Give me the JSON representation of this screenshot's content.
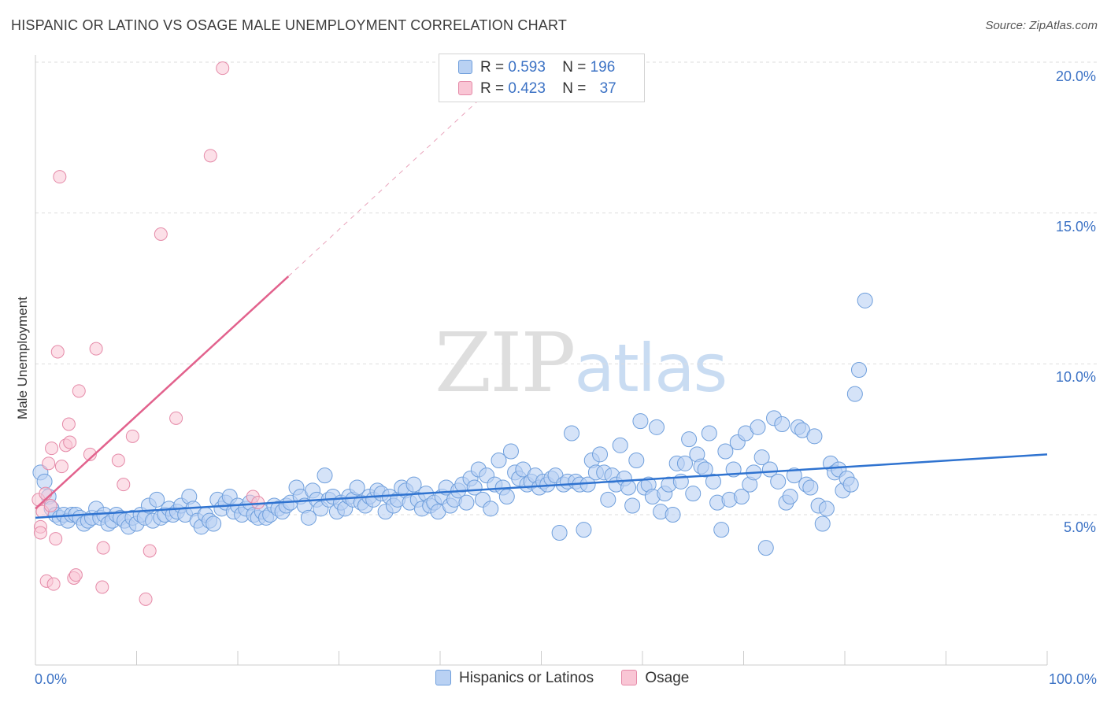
{
  "title": "HISPANIC OR LATINO VS OSAGE MALE UNEMPLOYMENT CORRELATION CHART",
  "source": "Source: ZipAtlas.com",
  "watermark": {
    "zip": "ZIP",
    "atlas": "atlas"
  },
  "legend_top": [
    {
      "r_label": "R =",
      "r_value": "0.593",
      "n_label": "N =",
      "n_value": "196"
    },
    {
      "r_label": "R =",
      "r_value": "0.423",
      "n_label": "N =",
      "n_value": "37"
    }
  ],
  "colors": {
    "blue_fill": "#b9d1f3",
    "blue_stroke": "#6f9fdc",
    "blue_line": "#2f73d0",
    "pink_fill": "#f9c6d5",
    "pink_stroke": "#e58aa8",
    "pink_line": "#e2628d",
    "axis_text": "#3d73c5",
    "grid": "#dddddd"
  },
  "chart_data": {
    "type": "scatter",
    "title": "HISPANIC OR LATINO VS OSAGE MALE UNEMPLOYMENT CORRELATION CHART",
    "xlabel": "",
    "ylabel": "Male Unemployment",
    "xlim": [
      0,
      100
    ],
    "ylim": [
      0,
      20.5
    ],
    "x_tick_labels": [
      "0.0%",
      "100.0%"
    ],
    "y_ticks": [
      5,
      10,
      15,
      20
    ],
    "y_tick_labels": [
      "5.0%",
      "10.0%",
      "15.0%",
      "20.0%"
    ],
    "grid": true,
    "legend_position": "bottom",
    "series": [
      {
        "name": "Hispanics or Latinos",
        "trendline": {
          "x": [
            0,
            100
          ],
          "y": [
            4.9,
            7.0
          ],
          "style": "solid"
        },
        "points": [
          [
            0.5,
            6.4
          ],
          [
            0.9,
            6.1
          ],
          [
            1.3,
            5.6
          ],
          [
            1.6,
            5.2
          ],
          [
            2.0,
            5.0
          ],
          [
            2.4,
            4.9
          ],
          [
            2.8,
            5.0
          ],
          [
            3.2,
            4.8
          ],
          [
            3.6,
            5.0
          ],
          [
            4.0,
            5.0
          ],
          [
            4.4,
            4.9
          ],
          [
            4.8,
            4.7
          ],
          [
            5.2,
            4.8
          ],
          [
            5.6,
            4.9
          ],
          [
            6.0,
            5.2
          ],
          [
            6.4,
            4.9
          ],
          [
            6.8,
            5.0
          ],
          [
            7.2,
            4.7
          ],
          [
            7.6,
            4.8
          ],
          [
            8.0,
            5.0
          ],
          [
            8.4,
            4.9
          ],
          [
            8.8,
            4.8
          ],
          [
            9.2,
            4.6
          ],
          [
            9.6,
            4.9
          ],
          [
            10.0,
            4.7
          ],
          [
            10.4,
            5.0
          ],
          [
            10.8,
            4.9
          ],
          [
            11.2,
            5.3
          ],
          [
            11.6,
            4.8
          ],
          [
            12.0,
            5.5
          ],
          [
            12.4,
            4.9
          ],
          [
            12.8,
            5.0
          ],
          [
            13.2,
            5.2
          ],
          [
            13.6,
            5.0
          ],
          [
            14.0,
            5.1
          ],
          [
            14.4,
            5.3
          ],
          [
            14.8,
            5.0
          ],
          [
            15.2,
            5.6
          ],
          [
            15.6,
            5.2
          ],
          [
            16.0,
            4.8
          ],
          [
            16.4,
            4.6
          ],
          [
            16.8,
            5.0
          ],
          [
            17.2,
            4.8
          ],
          [
            17.6,
            4.7
          ],
          [
            18.0,
            5.5
          ],
          [
            18.4,
            5.2
          ],
          [
            18.8,
            5.4
          ],
          [
            19.2,
            5.6
          ],
          [
            19.6,
            5.1
          ],
          [
            20.0,
            5.3
          ],
          [
            20.4,
            5.0
          ],
          [
            20.8,
            5.2
          ],
          [
            21.2,
            5.4
          ],
          [
            21.6,
            5.0
          ],
          [
            22.0,
            4.9
          ],
          [
            22.4,
            5.1
          ],
          [
            22.8,
            4.9
          ],
          [
            23.2,
            5.0
          ],
          [
            23.6,
            5.3
          ],
          [
            24.0,
            5.2
          ],
          [
            24.4,
            5.1
          ],
          [
            24.8,
            5.3
          ],
          [
            25.2,
            5.4
          ],
          [
            25.8,
            5.9
          ],
          [
            26.2,
            5.6
          ],
          [
            26.6,
            5.3
          ],
          [
            27.0,
            4.9
          ],
          [
            27.4,
            5.8
          ],
          [
            27.8,
            5.5
          ],
          [
            28.2,
            5.2
          ],
          [
            28.6,
            6.3
          ],
          [
            29.0,
            5.5
          ],
          [
            29.4,
            5.6
          ],
          [
            29.8,
            5.1
          ],
          [
            30.2,
            5.4
          ],
          [
            30.6,
            5.2
          ],
          [
            31.0,
            5.6
          ],
          [
            31.4,
            5.5
          ],
          [
            31.8,
            5.9
          ],
          [
            32.2,
            5.4
          ],
          [
            32.6,
            5.3
          ],
          [
            33.0,
            5.6
          ],
          [
            33.4,
            5.5
          ],
          [
            33.8,
            5.8
          ],
          [
            34.2,
            5.7
          ],
          [
            34.6,
            5.1
          ],
          [
            35.0,
            5.6
          ],
          [
            35.4,
            5.3
          ],
          [
            35.8,
            5.5
          ],
          [
            36.2,
            5.9
          ],
          [
            36.6,
            5.8
          ],
          [
            37.0,
            5.4
          ],
          [
            37.4,
            6.0
          ],
          [
            37.8,
            5.5
          ],
          [
            38.2,
            5.2
          ],
          [
            38.6,
            5.7
          ],
          [
            39.0,
            5.3
          ],
          [
            39.4,
            5.4
          ],
          [
            39.8,
            5.1
          ],
          [
            40.2,
            5.6
          ],
          [
            40.6,
            5.9
          ],
          [
            41.0,
            5.3
          ],
          [
            41.4,
            5.5
          ],
          [
            41.8,
            5.8
          ],
          [
            42.2,
            6.0
          ],
          [
            42.6,
            5.4
          ],
          [
            43.0,
            6.2
          ],
          [
            43.4,
            5.9
          ],
          [
            43.8,
            6.5
          ],
          [
            44.2,
            5.5
          ],
          [
            44.6,
            6.3
          ],
          [
            45.0,
            5.2
          ],
          [
            45.4,
            6.0
          ],
          [
            45.8,
            6.8
          ],
          [
            46.2,
            5.9
          ],
          [
            46.6,
            5.6
          ],
          [
            47.0,
            7.1
          ],
          [
            47.4,
            6.4
          ],
          [
            47.8,
            6.2
          ],
          [
            48.2,
            6.5
          ],
          [
            48.6,
            6.0
          ],
          [
            49.0,
            6.1
          ],
          [
            49.4,
            6.3
          ],
          [
            49.8,
            5.9
          ],
          [
            50.2,
            6.1
          ],
          [
            50.6,
            6.0
          ],
          [
            51.0,
            6.2
          ],
          [
            51.4,
            6.3
          ],
          [
            51.8,
            4.4
          ],
          [
            52.2,
            6.0
          ],
          [
            52.6,
            6.1
          ],
          [
            53.0,
            7.7
          ],
          [
            53.4,
            6.1
          ],
          [
            53.8,
            6.0
          ],
          [
            54.2,
            4.5
          ],
          [
            54.6,
            6.0
          ],
          [
            55.0,
            6.8
          ],
          [
            55.4,
            6.4
          ],
          [
            55.8,
            7.0
          ],
          [
            56.2,
            6.4
          ],
          [
            56.6,
            5.5
          ],
          [
            57.0,
            6.3
          ],
          [
            57.4,
            6.0
          ],
          [
            57.8,
            7.3
          ],
          [
            58.2,
            6.2
          ],
          [
            58.6,
            5.9
          ],
          [
            59.0,
            5.3
          ],
          [
            59.4,
            6.8
          ],
          [
            59.8,
            8.1
          ],
          [
            60.2,
            5.9
          ],
          [
            60.6,
            6.0
          ],
          [
            61.0,
            5.6
          ],
          [
            61.4,
            7.9
          ],
          [
            61.8,
            5.1
          ],
          [
            62.2,
            5.7
          ],
          [
            62.6,
            6.0
          ],
          [
            63.0,
            5.0
          ],
          [
            63.4,
            6.7
          ],
          [
            63.8,
            6.1
          ],
          [
            64.2,
            6.7
          ],
          [
            64.6,
            7.5
          ],
          [
            65.0,
            5.7
          ],
          [
            65.4,
            7.0
          ],
          [
            65.8,
            6.6
          ],
          [
            66.2,
            6.5
          ],
          [
            66.6,
            7.7
          ],
          [
            67.0,
            6.1
          ],
          [
            67.4,
            5.4
          ],
          [
            67.8,
            4.5
          ],
          [
            68.2,
            7.1
          ],
          [
            68.6,
            5.5
          ],
          [
            69.0,
            6.5
          ],
          [
            69.4,
            7.4
          ],
          [
            69.8,
            5.6
          ],
          [
            70.2,
            7.7
          ],
          [
            70.6,
            6.0
          ],
          [
            71.0,
            6.4
          ],
          [
            71.4,
            7.9
          ],
          [
            71.8,
            6.9
          ],
          [
            72.2,
            3.9
          ],
          [
            72.6,
            6.5
          ],
          [
            73.0,
            8.2
          ],
          [
            73.4,
            6.1
          ],
          [
            73.8,
            8.0
          ],
          [
            74.2,
            5.4
          ],
          [
            74.6,
            5.6
          ],
          [
            75.0,
            6.3
          ],
          [
            75.4,
            7.9
          ],
          [
            75.8,
            7.8
          ],
          [
            76.2,
            6.0
          ],
          [
            76.6,
            5.9
          ],
          [
            77.0,
            7.6
          ],
          [
            77.4,
            5.3
          ],
          [
            77.8,
            4.7
          ],
          [
            78.2,
            5.2
          ],
          [
            78.6,
            6.7
          ],
          [
            79.0,
            6.4
          ],
          [
            79.4,
            6.5
          ],
          [
            79.8,
            5.8
          ],
          [
            80.2,
            6.2
          ],
          [
            80.6,
            6.0
          ],
          [
            81.0,
            9.0
          ],
          [
            81.4,
            9.8
          ],
          [
            82.0,
            12.1
          ]
        ]
      },
      {
        "name": "Osage",
        "trendline": {
          "x": [
            0,
            25
          ],
          "y": [
            5.2,
            12.9
          ],
          "style": "solid",
          "extended_x": [
            25,
            44
          ],
          "extended_y": [
            12.9,
            18.8
          ],
          "extended_style": "dashed"
        },
        "points": [
          [
            0.3,
            5.5
          ],
          [
            0.5,
            4.6
          ],
          [
            0.5,
            4.4
          ],
          [
            0.7,
            5.1
          ],
          [
            1.0,
            5.7
          ],
          [
            1.1,
            2.8
          ],
          [
            1.3,
            6.7
          ],
          [
            1.5,
            5.3
          ],
          [
            1.6,
            7.2
          ],
          [
            1.8,
            2.7
          ],
          [
            2.0,
            4.2
          ],
          [
            2.2,
            10.4
          ],
          [
            2.4,
            16.2
          ],
          [
            2.6,
            6.6
          ],
          [
            3.0,
            7.3
          ],
          [
            3.3,
            8.0
          ],
          [
            3.4,
            7.4
          ],
          [
            3.8,
            2.9
          ],
          [
            4.0,
            3.0
          ],
          [
            4.3,
            9.1
          ],
          [
            5.4,
            7.0
          ],
          [
            6.0,
            10.5
          ],
          [
            6.6,
            2.6
          ],
          [
            6.7,
            3.9
          ],
          [
            8.2,
            6.8
          ],
          [
            8.7,
            6.0
          ],
          [
            9.6,
            7.6
          ],
          [
            10.9,
            2.2
          ],
          [
            11.3,
            3.8
          ],
          [
            12.4,
            14.3
          ],
          [
            13.9,
            8.2
          ],
          [
            17.3,
            16.9
          ],
          [
            18.5,
            19.8
          ],
          [
            21.5,
            5.6
          ],
          [
            22.0,
            5.4
          ]
        ]
      }
    ]
  },
  "bottom_legend": [
    "Hispanics or Latinos",
    "Osage"
  ]
}
